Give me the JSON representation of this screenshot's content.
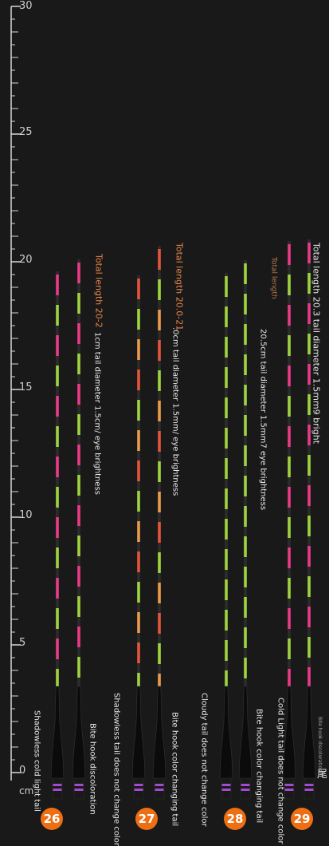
{
  "ruler": {
    "labels": [
      "0",
      "5",
      "10",
      "15",
      "20",
      "25",
      "30"
    ],
    "unit": "cm"
  },
  "colors": {
    "pink": "#e93a86",
    "green": "#9fd23f",
    "orange": "#e99a4a",
    "red": "#e2553c",
    "dark": "#2c2c2c",
    "badge": "#ee6f13"
  },
  "groups": [
    {
      "number": "26",
      "spec_orange": "Total length 20-2",
      "spec_white": "1cm tail diameter 1.5cm/ eye brightness",
      "left_label": "Shadowless cold light tail",
      "right_label": "Bite hook discoloration"
    },
    {
      "number": "27",
      "spec_orange": "Total length 20.0-21",
      "spec_white": ".0cm tail diameter 1.5mm/ eye brightness",
      "left_label": "Shadowless tail does not change color",
      "right_label": "Bite hook color changing tail"
    },
    {
      "number": "28",
      "spec_orange": "Total length",
      "spec_white": "20.5cm tail diameter 1.5mm7 eye brightness",
      "left_label": "Cloudy tail does not change color",
      "right_label": "Bite hook color changing tail"
    },
    {
      "number": "29",
      "spec_white": "Total length 20.3 tail diameter 1.5mm9 bright",
      "left_label": "Cold Light tail does not change color",
      "right_label": "Bite hook discoloration",
      "char": "尾"
    }
  ]
}
